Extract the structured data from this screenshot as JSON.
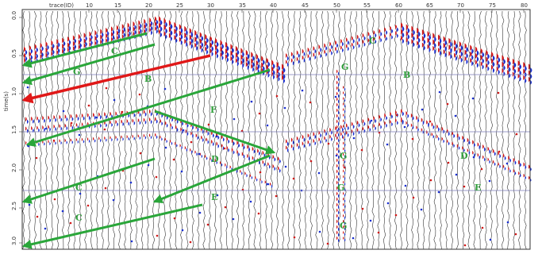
{
  "header": {
    "trace_label": "trace(ID)",
    "trace_ticks": [
      "10",
      "15",
      "20",
      "25",
      "30",
      "35",
      "40",
      "45",
      "50",
      "55",
      "60",
      "65",
      "70",
      "75",
      "80"
    ]
  },
  "left_axis": {
    "label": "time(s)",
    "ticks": [
      "0.0",
      "0.5",
      "1.0",
      "1.5",
      "2.0",
      "2.5",
      "3.0"
    ]
  },
  "annotations": [
    {
      "id": "G1",
      "text": "G",
      "color": "#2e9e3a"
    },
    {
      "id": "B1",
      "text": "B",
      "color": "#2e9e3a"
    },
    {
      "id": "C1",
      "text": "C",
      "color": "#2e9e3a"
    },
    {
      "id": "D1",
      "text": "D",
      "color": "#2e9e3a"
    },
    {
      "id": "C2",
      "text": "C",
      "color": "#2e9e3a"
    },
    {
      "id": "E1",
      "text": "E",
      "color": "#2e9e3a"
    },
    {
      "id": "C3",
      "text": "C",
      "color": "#2e9e3a"
    },
    {
      "id": "F1",
      "text": "F",
      "color": "#2e9e3a"
    },
    {
      "id": "G2",
      "text": "G",
      "color": "#2e9e3a"
    },
    {
      "id": "B2",
      "text": "B",
      "color": "#2e9e3a"
    },
    {
      "id": "C4",
      "text": "C",
      "color": "#2e9e3a"
    },
    {
      "id": "G3",
      "text": "G",
      "color": "#2e9e3a"
    },
    {
      "id": "D2",
      "text": "D",
      "color": "#2e9e3a"
    },
    {
      "id": "G4",
      "text": "G",
      "color": "#2e9e3a"
    },
    {
      "id": "E2",
      "text": "E",
      "color": "#2e9e3a"
    },
    {
      "id": "G5",
      "text": "G",
      "color": "#2e9e3a"
    }
  ],
  "colors": {
    "positive_wiggle": "#d01818",
    "negative_wiggle": "#1a2fd0",
    "trace_line": "#222222",
    "green_arrow": "#2aa63a",
    "red_arrow": "#e01818",
    "guide_line": "#7a7ab8"
  }
}
